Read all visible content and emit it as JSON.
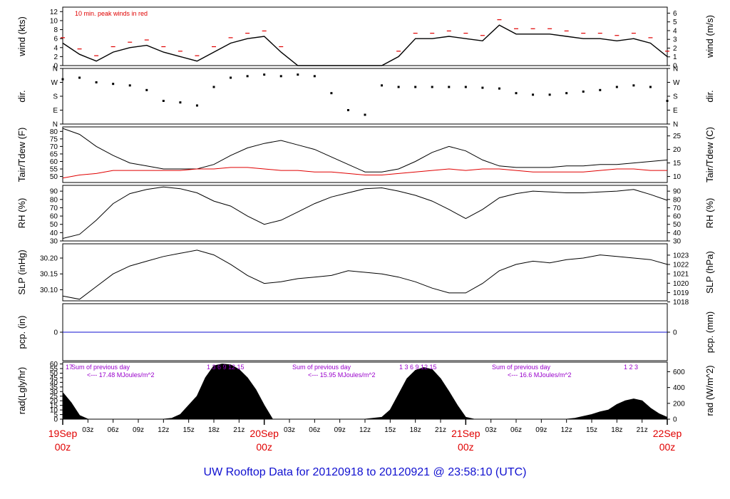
{
  "title": "UW Rooftop Data for 20120918  to  20120921 @ 23:58:10  (UTC)",
  "colors": {
    "black": "#000000",
    "red": "#e00000",
    "blue": "#1010d0",
    "purple": "#9900cc"
  },
  "time_axis": {
    "hours_labels": [
      "03z",
      "06z",
      "09z",
      "12z",
      "15z",
      "18z",
      "21z"
    ],
    "major": [
      {
        "top": "19Sep",
        "bottom": "00z"
      },
      {
        "top": "20Sep",
        "bottom": "00z"
      },
      {
        "top": "21Sep",
        "bottom": "00z"
      },
      {
        "top": "22Sep",
        "bottom": "00z"
      }
    ]
  },
  "chart_data": [
    {
      "type": "line",
      "ylabel_left": "wind (kts)",
      "ylabel_right": "wind (m/s)",
      "left_ticks": [
        "0",
        "2",
        "4",
        "6",
        "8",
        "10",
        "12"
      ],
      "right_ticks": [
        "0",
        "1",
        "2",
        "3",
        "4",
        "5",
        "6"
      ],
      "ylim": [
        0,
        13
      ],
      "annotation": "10 min. peak winds in red",
      "series": [
        {
          "x_hours": [
            0,
            2,
            4,
            6,
            8,
            10,
            12,
            14,
            16,
            18,
            20,
            22,
            24,
            26,
            28,
            30,
            32,
            34,
            36,
            38,
            40,
            42,
            44,
            46,
            48,
            50,
            52,
            54,
            56,
            58,
            60,
            62,
            64,
            66,
            68,
            70,
            72
          ],
          "values": [
            5,
            2.5,
            1,
            3,
            4,
            4.5,
            3,
            2,
            1,
            3,
            5,
            6,
            6.5,
            3,
            0,
            0,
            0,
            0,
            0,
            0,
            2,
            6,
            6,
            6.5,
            6,
            5.5,
            9,
            7,
            7,
            7,
            6.5,
            6,
            6,
            5.5,
            6,
            5,
            2
          ]
        }
      ]
    },
    {
      "type": "scatter",
      "ylabel_left": "dir.",
      "ylabel_right": "dir.",
      "left_ticks": [
        "N",
        "E",
        "S",
        "W",
        "N"
      ],
      "right_ticks": [
        "N",
        "E",
        "S",
        "W",
        "N"
      ],
      "ylim": [
        0,
        360
      ],
      "series": [
        {
          "x_hours": [
            0,
            2,
            4,
            6,
            8,
            10,
            12,
            14,
            16,
            18,
            20,
            22,
            24,
            26,
            28,
            30,
            32,
            34,
            36,
            38,
            40,
            42,
            44,
            46,
            48,
            50,
            52,
            54,
            56,
            58,
            60,
            62,
            64,
            66,
            68,
            70,
            72
          ],
          "values": [
            290,
            300,
            270,
            260,
            250,
            220,
            150,
            140,
            120,
            240,
            300,
            310,
            320,
            310,
            320,
            310,
            200,
            90,
            60,
            250,
            240,
            240,
            240,
            240,
            240,
            235,
            230,
            200,
            190,
            190,
            200,
            210,
            220,
            240,
            250,
            240,
            150
          ]
        }
      ]
    },
    {
      "type": "line",
      "ylabel_left": "Tair/Tdew (F)",
      "ylabel_right": "Tair/Tdew (C)",
      "left_ticks": [
        "50",
        "55",
        "60",
        "65",
        "70",
        "75",
        "80"
      ],
      "right_ticks": [
        "10",
        "15",
        "20",
        "25"
      ],
      "ylim": [
        46,
        83
      ],
      "series": [
        {
          "x_hours": [
            0,
            2,
            4,
            6,
            8,
            10,
            12,
            14,
            16,
            18,
            20,
            22,
            24,
            26,
            28,
            30,
            32,
            34,
            36,
            38,
            40,
            42,
            44,
            46,
            48,
            50,
            52,
            54,
            56,
            58,
            60,
            62,
            64,
            66,
            68,
            70,
            72
          ],
          "values": [
            82,
            78,
            70,
            64,
            59,
            57,
            55,
            55,
            55,
            58,
            64,
            69,
            72,
            74,
            71,
            68,
            63,
            58,
            53,
            53,
            55,
            60,
            66,
            70,
            67,
            61,
            57,
            56,
            56,
            56,
            57,
            57,
            58,
            58,
            59,
            60,
            61
          ],
          "color": "#000000"
        },
        {
          "x_hours": [
            0,
            2,
            4,
            6,
            8,
            10,
            12,
            14,
            16,
            18,
            20,
            22,
            24,
            26,
            28,
            30,
            32,
            34,
            36,
            38,
            40,
            42,
            44,
            46,
            48,
            50,
            52,
            54,
            56,
            58,
            60,
            62,
            64,
            66,
            68,
            70,
            72
          ],
          "values": [
            49,
            51,
            52,
            54,
            54,
            54,
            54,
            54,
            55,
            55,
            56,
            56,
            55,
            54,
            54,
            53,
            53,
            52,
            51,
            51,
            52,
            53,
            54,
            55,
            54,
            55,
            55,
            54,
            53,
            53,
            53,
            53,
            54,
            55,
            55,
            54,
            54
          ],
          "color": "#e00000"
        }
      ]
    },
    {
      "type": "line",
      "ylabel_left": "RH (%)",
      "ylabel_right": "RH (%)",
      "left_ticks": [
        "30",
        "40",
        "50",
        "60",
        "70",
        "80",
        "90"
      ],
      "right_ticks": [
        "30",
        "40",
        "50",
        "60",
        "70",
        "80",
        "90"
      ],
      "ylim": [
        30,
        97
      ],
      "series": [
        {
          "x_hours": [
            0,
            2,
            4,
            6,
            8,
            10,
            12,
            14,
            16,
            18,
            20,
            22,
            24,
            26,
            28,
            30,
            32,
            34,
            36,
            38,
            40,
            42,
            44,
            46,
            48,
            50,
            52,
            54,
            56,
            58,
            60,
            62,
            64,
            66,
            68,
            70,
            72
          ],
          "values": [
            33,
            38,
            55,
            75,
            87,
            92,
            95,
            93,
            88,
            78,
            72,
            60,
            50,
            55,
            65,
            75,
            83,
            88,
            93,
            94,
            90,
            85,
            78,
            68,
            57,
            68,
            82,
            87,
            90,
            89,
            88,
            88,
            89,
            90,
            92,
            86,
            79
          ]
        }
      ]
    },
    {
      "type": "line",
      "ylabel_left": "SLP (inHg)",
      "ylabel_right": "SLP (hPa)",
      "left_ticks": [
        "30.10",
        "30.15",
        "30.20"
      ],
      "right_ticks": [
        "1018",
        "1019",
        "1020",
        "1021",
        "1022",
        "1023"
      ],
      "ylim": [
        30.065,
        30.245
      ],
      "series": [
        {
          "x_hours": [
            0,
            2,
            4,
            6,
            8,
            10,
            12,
            14,
            16,
            18,
            20,
            22,
            24,
            26,
            28,
            30,
            32,
            34,
            36,
            38,
            40,
            42,
            44,
            46,
            48,
            50,
            52,
            54,
            56,
            58,
            60,
            62,
            64,
            66,
            68,
            70,
            72
          ],
          "values": [
            30.08,
            30.07,
            30.11,
            30.15,
            30.175,
            30.19,
            30.205,
            30.215,
            30.225,
            30.21,
            30.18,
            30.145,
            30.12,
            30.125,
            30.135,
            30.14,
            30.145,
            30.16,
            30.155,
            30.15,
            30.14,
            30.125,
            30.105,
            30.09,
            30.09,
            30.12,
            30.16,
            30.18,
            30.19,
            30.185,
            30.195,
            30.2,
            30.21,
            30.205,
            30.2,
            30.195,
            30.18
          ]
        }
      ]
    },
    {
      "type": "line",
      "ylabel_left": "pcp. (in)",
      "ylabel_right": "pcp. (mm)",
      "left_ticks": [
        "0"
      ],
      "right_ticks": [
        "0"
      ],
      "ylim": [
        -1,
        1
      ],
      "series": [
        {
          "x_hours": [
            0,
            72
          ],
          "values": [
            0,
            0
          ],
          "color": "#1010d0"
        }
      ]
    },
    {
      "type": "area",
      "ylabel_left": "rad(Lgly/hr)",
      "ylabel_right": "rad (W/m^2)",
      "left_ticks": [
        "0",
        "5",
        "10",
        "15",
        "20",
        "25",
        "30",
        "35",
        "40",
        "45",
        "50",
        "55",
        "60"
      ],
      "right_ticks": [
        "0",
        "200",
        "400",
        "600"
      ],
      "ylim": [
        0,
        62
      ],
      "day_labels": [
        {
          "hours": "17",
          "sum": "",
          "value": ""
        },
        {
          "hours": "1  3  6  9  12  15",
          "sum": "Sum of previous day",
          "value": "<--- 17.48 MJoules/m^2"
        },
        {
          "hours": "1  3  6  9  12  15",
          "sum": "Sum of previous day",
          "value": "<--- 15.95 MJoules/m^2"
        },
        {
          "hours": "1  2  3",
          "sum": "Sum of previous day",
          "value": "<--- 16.6 MJoules/m^2"
        }
      ],
      "series": [
        {
          "x_hours": [
            0,
            1,
            2,
            3,
            12,
            13,
            14,
            16,
            17,
            18,
            19,
            20,
            21,
            22,
            23,
            24,
            25,
            36,
            38,
            39,
            40,
            41,
            42,
            43,
            44,
            45,
            46,
            47,
            48,
            49,
            60,
            61,
            62,
            63,
            64,
            65,
            66,
            67,
            68,
            69,
            70,
            71,
            72
          ],
          "values": [
            29,
            18,
            4,
            0,
            0,
            1,
            5,
            25,
            45,
            58,
            60,
            59,
            54,
            45,
            32,
            15,
            0,
            0,
            2,
            10,
            27,
            44,
            53,
            56,
            54,
            44,
            30,
            15,
            2,
            0,
            0,
            1,
            3,
            5,
            8,
            10,
            16,
            20,
            22,
            20,
            12,
            6,
            2
          ]
        }
      ]
    }
  ]
}
